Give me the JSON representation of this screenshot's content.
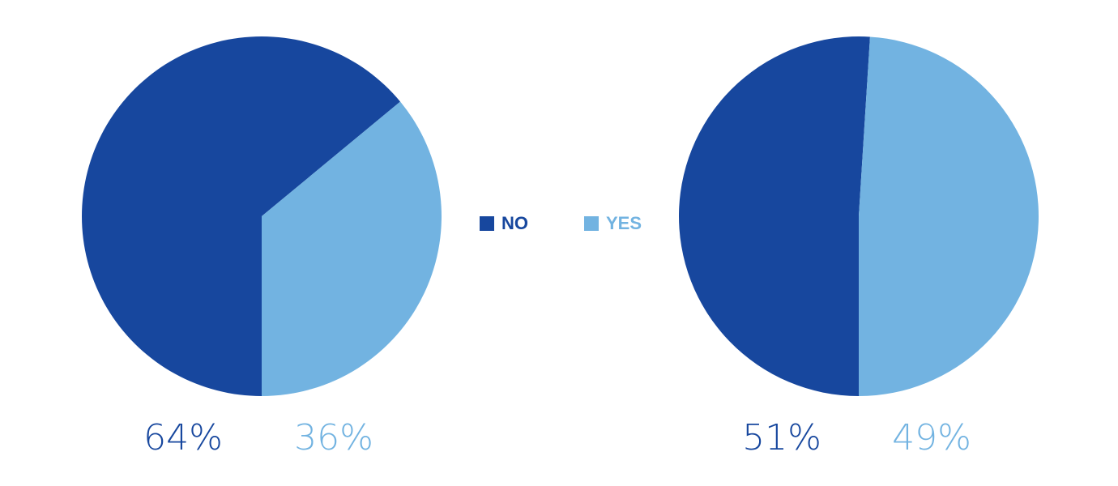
{
  "chart_data": {
    "type": "pie",
    "categories": [
      "NO",
      "YES"
    ],
    "colors": [
      "#17479e",
      "#72b3e1"
    ],
    "start_angle": 180,
    "series": [
      {
        "values": [
          64,
          36
        ],
        "value_labels": [
          "64%",
          "36%"
        ]
      },
      {
        "values": [
          51,
          49
        ],
        "value_labels": [
          "51%",
          "49%"
        ]
      }
    ]
  }
}
